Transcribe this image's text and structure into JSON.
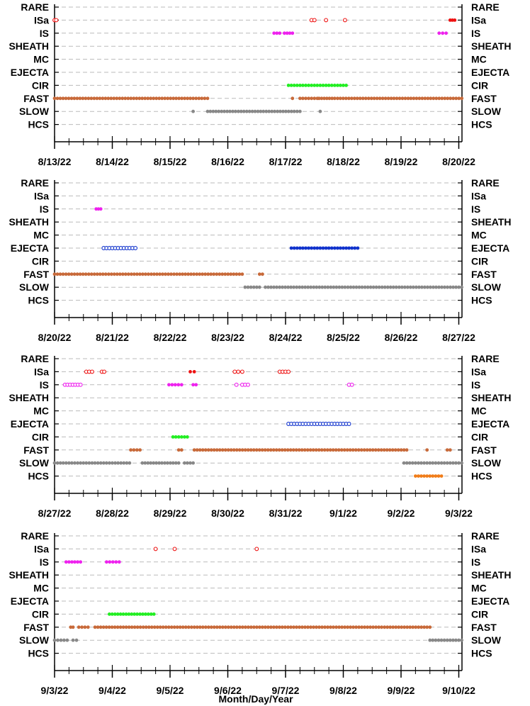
{
  "x_axis_label": "Month/Day/Year",
  "categories": [
    "RARE",
    "ISa",
    "IS",
    "SHEATH",
    "MC",
    "EJECTA",
    "CIR",
    "FAST",
    "SLOW",
    "HCS"
  ],
  "colors": {
    "ISa": "#ee1111",
    "IS": "#ee22ee",
    "EJECTA": "#1133cc",
    "CIR": "#22ee22",
    "FAST": "#c86a3a",
    "SLOW": "#888888",
    "HCS": "#f07d1a"
  },
  "chart_data": [
    {
      "type": "scatter",
      "x_tick_labels": [
        "8/13/22",
        "8/14/22",
        "8/15/22",
        "8/16/22",
        "8/17/22",
        "8/18/22",
        "8/19/22",
        "8/20/22"
      ],
      "xlim_days": [
        0,
        7.1
      ],
      "series": [
        {
          "category": "ISa",
          "style": "open",
          "segments": [
            [
              4.45,
              4.5
            ],
            [
              4.7,
              4.72
            ],
            [
              5.03,
              5.03
            ],
            [
              0,
              0.03
            ]
          ]
        },
        {
          "category": "ISa",
          "style": "filled",
          "segments": [
            [
              6.85,
              6.93
            ]
          ]
        },
        {
          "category": "IS",
          "style": "filled",
          "segments": [
            [
              3.8,
              3.9
            ],
            [
              3.98,
              4.12
            ],
            [
              6.66,
              6.78
            ]
          ]
        },
        {
          "category": "CIR",
          "style": "filled",
          "segments": [
            [
              4.05,
              5.05
            ]
          ]
        },
        {
          "category": "FAST",
          "style": "filled",
          "segments": [
            [
              0,
              2.4
            ],
            [
              2.45,
              2.65
            ],
            [
              4.12,
              4.12
            ],
            [
              4.25,
              4.55
            ],
            [
              4.58,
              4.85
            ],
            [
              4.9,
              7.1
            ]
          ]
        },
        {
          "category": "SLOW",
          "style": "filled",
          "segments": [
            [
              2.4,
              2.4
            ],
            [
              2.65,
              4.15
            ],
            [
              4.2,
              4.25
            ],
            [
              4.6,
              4.6
            ]
          ]
        }
      ]
    },
    {
      "type": "scatter",
      "x_tick_labels": [
        "8/20/22",
        "8/21/22",
        "8/22/22",
        "8/23/22",
        "8/24/22",
        "8/25/22",
        "8/26/22",
        "8/27/22"
      ],
      "xlim_days": [
        0,
        7.1
      ],
      "series": [
        {
          "category": "IS",
          "style": "filled",
          "segments": [
            [
              0.72,
              0.8
            ]
          ]
        },
        {
          "category": "EJECTA",
          "style": "open",
          "segments": [
            [
              0.85,
              1.4
            ]
          ]
        },
        {
          "category": "EJECTA",
          "style": "filled",
          "segments": [
            [
              4.1,
              5.25
            ]
          ]
        },
        {
          "category": "FAST",
          "style": "filled",
          "segments": [
            [
              0,
              3.25
            ],
            [
              3.55,
              3.6
            ]
          ]
        },
        {
          "category": "SLOW",
          "style": "filled",
          "segments": [
            [
              3.3,
              3.55
            ],
            [
              3.65,
              7.1
            ]
          ]
        }
      ]
    },
    {
      "type": "scatter",
      "x_tick_labels": [
        "8/27/22",
        "8/28/22",
        "8/29/22",
        "8/30/22",
        "8/31/22",
        "9/1/22",
        "9/2/22",
        "9/3/22"
      ],
      "xlim_days": [
        0,
        7.1
      ],
      "series": [
        {
          "category": "ISa",
          "style": "open",
          "segments": [
            [
              0.55,
              0.65
            ],
            [
              0.82,
              0.86
            ],
            [
              3.12,
              3.18
            ],
            [
              3.25,
              3.25
            ],
            [
              3.9,
              4.05
            ]
          ]
        },
        {
          "category": "ISa",
          "style": "filled",
          "segments": [
            [
              2.35,
              2.42
            ]
          ]
        },
        {
          "category": "IS",
          "style": "open",
          "segments": [
            [
              0.18,
              0.45
            ],
            [
              3.15,
              3.15
            ],
            [
              3.25,
              3.35
            ],
            [
              5.1,
              5.15
            ]
          ]
        },
        {
          "category": "IS",
          "style": "filled",
          "segments": [
            [
              1.98,
              2.2
            ],
            [
              2.4,
              2.45
            ]
          ]
        },
        {
          "category": "EJECTA",
          "style": "open",
          "segments": [
            [
              4.05,
              5.1
            ]
          ]
        },
        {
          "category": "CIR",
          "style": "filled",
          "segments": [
            [
              2.05,
              2.3
            ]
          ]
        },
        {
          "category": "FAST",
          "style": "filled",
          "segments": [
            [
              1.32,
              1.48
            ],
            [
              2.15,
              2.2
            ],
            [
              2.42,
              6.1
            ],
            [
              6.45,
              6.45
            ],
            [
              6.8,
              6.85
            ]
          ]
        },
        {
          "category": "SLOW",
          "style": "filled",
          "segments": [
            [
              0,
              1.3
            ],
            [
              1.52,
              2.15
            ],
            [
              2.25,
              2.4
            ],
            [
              6.05,
              6.95
            ],
            [
              7.0,
              7.1
            ]
          ]
        },
        {
          "category": "HCS",
          "style": "filled",
          "segments": [
            [
              6.25,
              6.7
            ]
          ]
        }
      ]
    },
    {
      "type": "scatter",
      "x_tick_labels": [
        "9/3/22",
        "9/4/22",
        "9/5/22",
        "9/6/22",
        "9/7/22",
        "9/8/22",
        "9/9/22",
        "9/10/22"
      ],
      "xlim_days": [
        0,
        7.1
      ],
      "series": [
        {
          "category": "ISa",
          "style": "open",
          "segments": [
            [
              1.75,
              1.75
            ],
            [
              2.08,
              2.08
            ],
            [
              3.5,
              3.5
            ]
          ]
        },
        {
          "category": "IS",
          "style": "filled",
          "segments": [
            [
              0.2,
              0.45
            ],
            [
              0.9,
              1.12
            ]
          ]
        },
        {
          "category": "CIR",
          "style": "filled",
          "segments": [
            [
              0.95,
              1.72
            ]
          ]
        },
        {
          "category": "FAST",
          "style": "filled",
          "segments": [
            [
              0.28,
              0.32
            ],
            [
              0.42,
              0.58
            ],
            [
              0.7,
              6.5
            ]
          ]
        },
        {
          "category": "SLOW",
          "style": "filled",
          "segments": [
            [
              0,
              0.22
            ],
            [
              0.32,
              0.38
            ],
            [
              6.5,
              7.1
            ]
          ]
        }
      ]
    }
  ]
}
